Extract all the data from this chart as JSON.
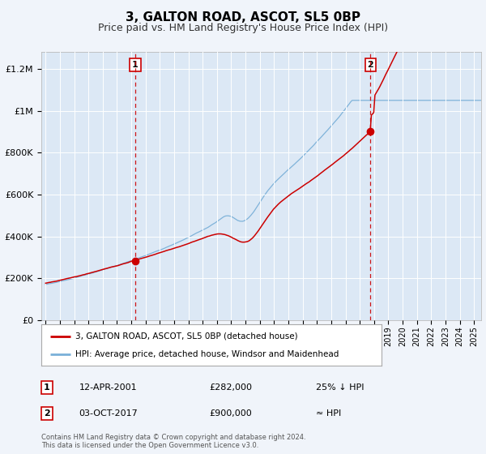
{
  "title": "3, GALTON ROAD, ASCOT, SL5 0BP",
  "subtitle": "Price paid vs. HM Land Registry's House Price Index (HPI)",
  "title_fontsize": 11,
  "subtitle_fontsize": 9,
  "background_color": "#f0f4fa",
  "plot_bg_color": "#dce8f5",
  "ylabel_values": [
    "£0",
    "£200K",
    "£400K",
    "£600K",
    "£800K",
    "£1M",
    "£1.2M"
  ],
  "ylim": [
    0,
    1280000
  ],
  "xlim_start": 1994.7,
  "xlim_end": 2025.5,
  "marker1_x": 2001.28,
  "marker1_y": 282000,
  "marker2_x": 2017.75,
  "marker2_y": 900000,
  "legend_line1": "3, GALTON ROAD, ASCOT, SL5 0BP (detached house)",
  "legend_line2": "HPI: Average price, detached house, Windsor and Maidenhead",
  "annotation1_label": "1",
  "annotation1_date": "12-APR-2001",
  "annotation1_price": "£282,000",
  "annotation1_hpi": "25% ↓ HPI",
  "annotation2_label": "2",
  "annotation2_date": "03-OCT-2017",
  "annotation2_price": "£900,000",
  "annotation2_hpi": "≈ HPI",
  "footer1": "Contains HM Land Registry data © Crown copyright and database right 2024.",
  "footer2": "This data is licensed under the Open Government Licence v3.0.",
  "hpi_color": "#7ab0d8",
  "price_color": "#cc0000",
  "marker_color": "#cc0000",
  "vline_color": "#cc0000"
}
